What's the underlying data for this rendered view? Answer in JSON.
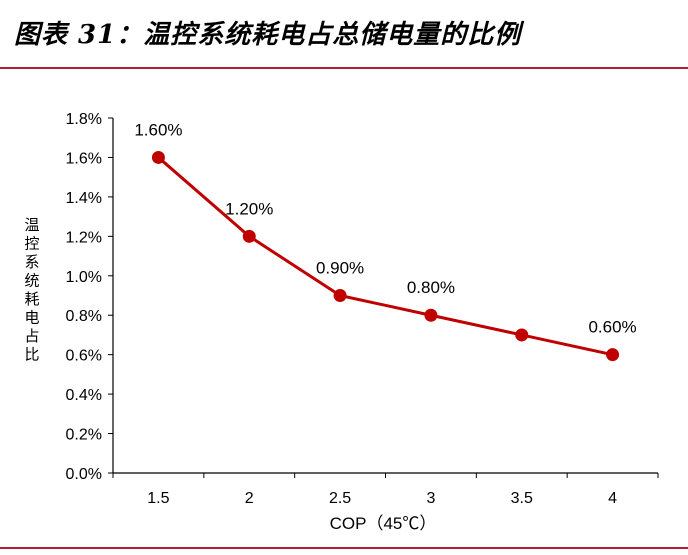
{
  "title": "图表 31：温控系统耗电占总储电量的比例",
  "colors": {
    "accent": "#b0203a",
    "series": "#c00000",
    "axis": "#000000"
  },
  "chart_data": {
    "type": "line",
    "x": [
      1.5,
      2,
      2.5,
      3,
      3.5,
      4
    ],
    "x_tick_labels": [
      "1.5",
      "2",
      "2.5",
      "3",
      "3.5",
      "4"
    ],
    "series": [
      {
        "values": [
          1.6,
          1.2,
          0.9,
          0.8,
          0.7,
          0.6
        ],
        "data_labels": [
          "1.60%",
          "1.20%",
          "0.90%",
          "0.80%",
          null,
          "0.60%"
        ]
      }
    ],
    "xlabel": "COP（45℃）",
    "ylabel": "温控系统耗电占比",
    "ylim": [
      0,
      1.8
    ],
    "y_ticks": [
      0,
      0.2,
      0.4,
      0.6,
      0.8,
      1.0,
      1.2,
      1.4,
      1.6,
      1.8
    ],
    "y_tick_labels": [
      "0.0%",
      "0.2%",
      "0.4%",
      "0.6%",
      "0.8%",
      "1.0%",
      "1.2%",
      "1.4%",
      "1.6%",
      "1.8%"
    ],
    "grid": false,
    "legend": "none"
  }
}
